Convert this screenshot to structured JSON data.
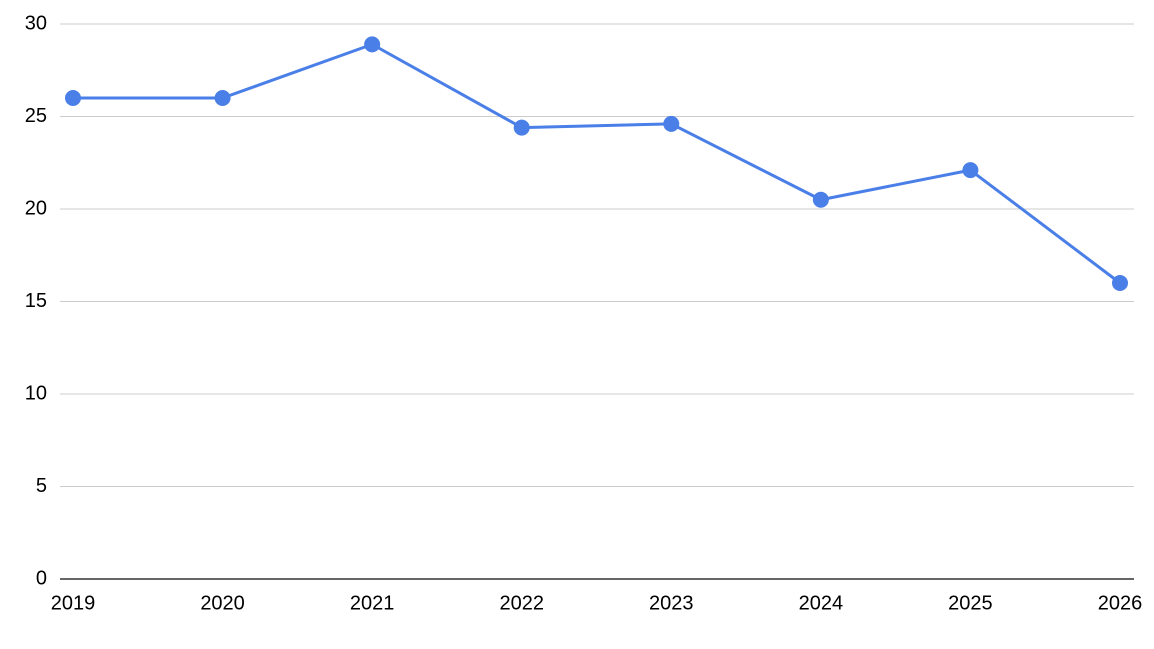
{
  "chart_data": {
    "type": "line",
    "x": [
      2019,
      2020,
      2021,
      2022,
      2023,
      2024,
      2025,
      2026
    ],
    "values": [
      26,
      26,
      28.9,
      24.4,
      24.6,
      20.5,
      22.1,
      16
    ],
    "color": "#4a7fe8",
    "xlim": [
      2019,
      2026
    ],
    "xticks": [
      2019,
      2020,
      2021,
      2022,
      2023,
      2024,
      2025,
      2026
    ],
    "ylim": [
      0,
      30
    ],
    "yticks": [
      0,
      5,
      10,
      15,
      20,
      25,
      30
    ],
    "grid": true
  }
}
